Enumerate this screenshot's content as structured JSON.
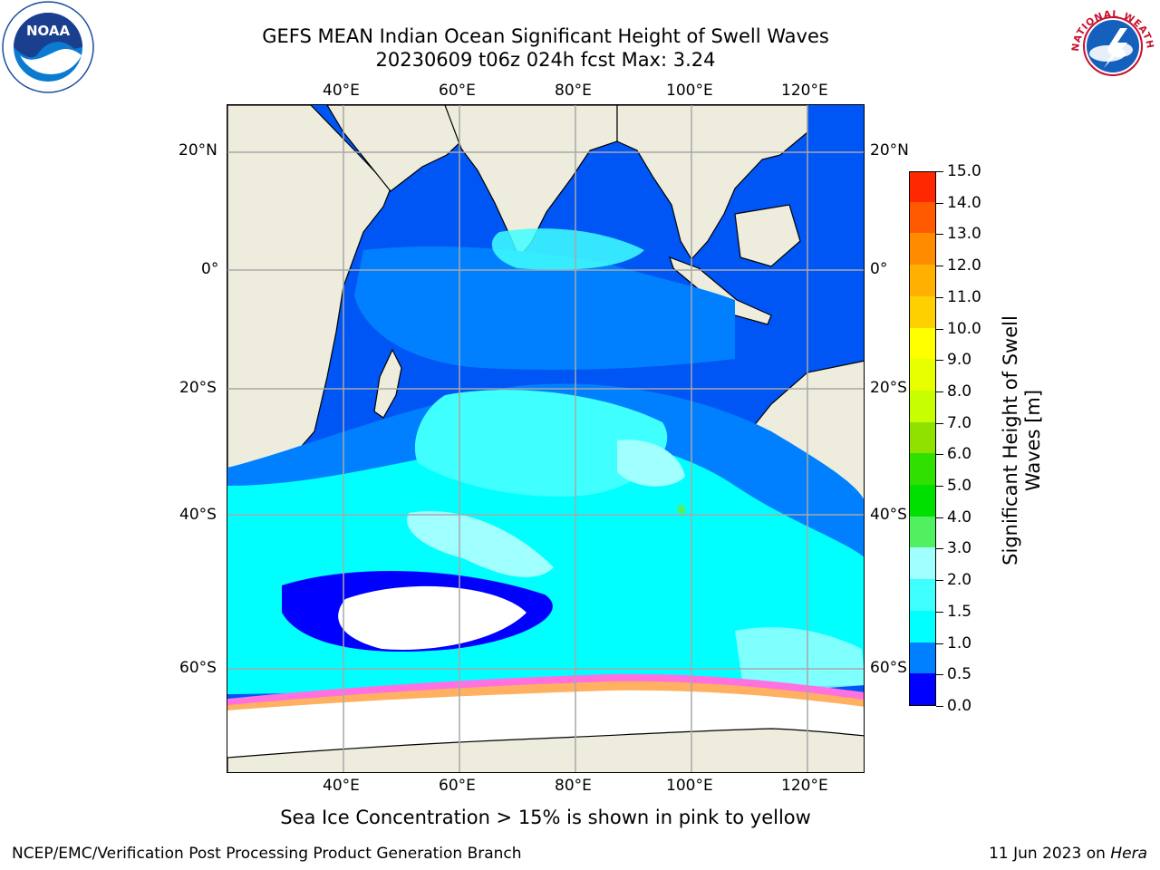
{
  "header": {
    "title_line1": "GEFS MEAN Indian Ocean Significant Height of Swell Waves",
    "title_line2": "20230609 t06z 024h fcst   Max: 3.24"
  },
  "logos": {
    "noaa_text": "NOAA",
    "nws_text": "NATIONAL WEATHER SERVICE"
  },
  "axes": {
    "lon_labels": [
      "40°E",
      "60°E",
      "80°E",
      "100°E",
      "120°E"
    ],
    "lat_labels": [
      "20°N",
      "0°",
      "20°S",
      "40°S",
      "60°S"
    ]
  },
  "colorbar": {
    "title_line1": "Significant Height of Swell",
    "title_line2": "Waves [m]",
    "tick_labels": [
      "0.0",
      "0.5",
      "1.0",
      "1.5",
      "2.0",
      "3.0",
      "4.0",
      "5.0",
      "6.0",
      "7.0",
      "8.0",
      "9.0",
      "10.0",
      "11.0",
      "12.0",
      "13.0",
      "14.0",
      "15.0"
    ],
    "colors": [
      "#0000ff",
      "#0080ff",
      "#00ffff",
      "#40ffff",
      "#a0ffff",
      "#50f060",
      "#00e000",
      "#30e000",
      "#90e000",
      "#c8ff00",
      "#e8ff00",
      "#ffff00",
      "#ffd000",
      "#ffb000",
      "#ff8c00",
      "#ff5a00",
      "#ff2800",
      "#ff0000"
    ]
  },
  "note": "Sea Ice Concentration > 15% is shown in pink to yellow",
  "footer": {
    "left": "NCEP/EMC/Verification Post Processing Product Generation Branch",
    "right_prefix": "11 Jun 2023 on ",
    "right_host": "Hera"
  }
}
